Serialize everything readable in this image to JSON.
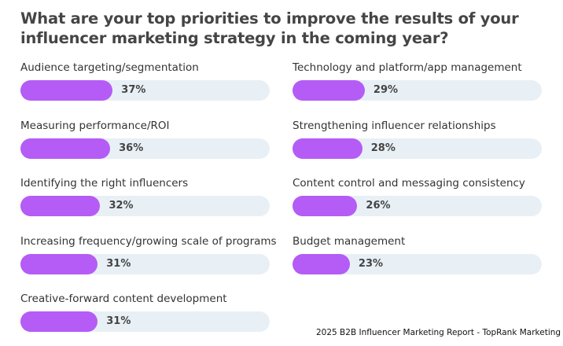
{
  "chart_data": {
    "type": "bar",
    "title": "What are your top priorities to improve the results of your influencer marketing strategy in the coming year?",
    "categories": [
      "Audience targeting/segmentation",
      "Measuring performance/ROI",
      "Identifying the right influencers",
      "Increasing frequency/growing scale of programs",
      "Creative-forward content development",
      "Technology and platform/app management",
      "Strengthening influencer relationships",
      "Content control and messaging consistency",
      "Budget management"
    ],
    "values": [
      37,
      36,
      32,
      31,
      31,
      29,
      28,
      26,
      23
    ],
    "labels": [
      "37%",
      "36%",
      "32%",
      "31%",
      "31%",
      "29%",
      "28%",
      "26%",
      "23%"
    ],
    "ylim": [
      0,
      100
    ],
    "colors": {
      "bar": "#b45cf5",
      "track": "#e8f0f6"
    }
  },
  "footer": "2025 B2B Influencer Marketing Report - TopRank Marketing"
}
